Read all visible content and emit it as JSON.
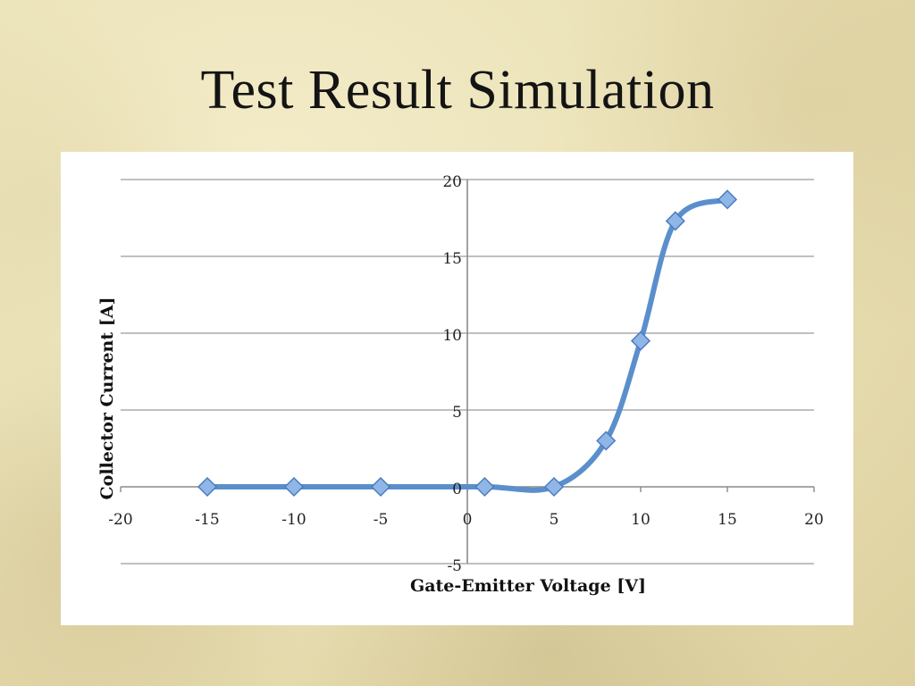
{
  "slide": {
    "title": "Test Result Simulation"
  },
  "chart_data": {
    "type": "line",
    "title": "",
    "xlabel": "Gate-Emitter Voltage [V]",
    "ylabel": "Collector Current [A]",
    "xlim": [
      -20,
      20
    ],
    "ylim": [
      -5,
      20
    ],
    "x_ticks": [
      -20,
      -15,
      -10,
      -5,
      0,
      5,
      10,
      15,
      20
    ],
    "y_ticks": [
      -5,
      0,
      5,
      10,
      15,
      20
    ],
    "grid": "horizontal",
    "legend": "none",
    "series": [
      {
        "marker": "diamond",
        "color": "#5b8fcc",
        "x": [
          -15,
          -10,
          -5,
          1,
          5,
          8,
          10,
          12,
          15
        ],
        "y": [
          0,
          0,
          0,
          0,
          0,
          3,
          9.5,
          17.3,
          18.7
        ]
      }
    ]
  }
}
